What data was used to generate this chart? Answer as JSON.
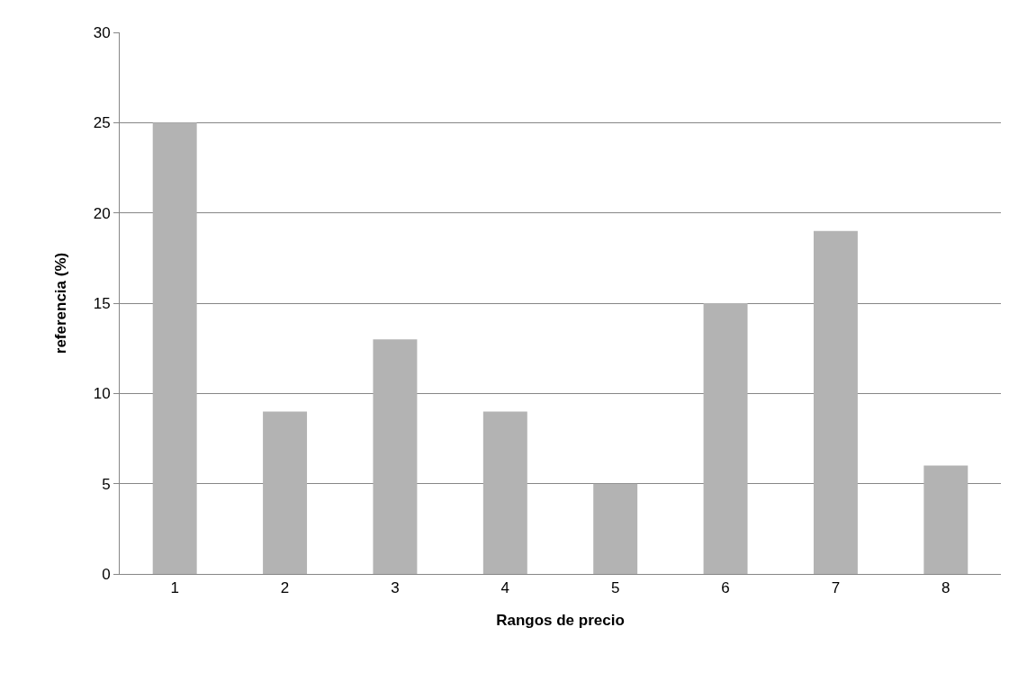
{
  "chart_data": {
    "type": "bar",
    "xlabel": "Rangos de precio",
    "ylabel": "referencia (%)",
    "categories": [
      "1",
      "2",
      "3",
      "4",
      "5",
      "6",
      "7",
      "8"
    ],
    "values": [
      25,
      9,
      13,
      9,
      5,
      15,
      19,
      6
    ],
    "color": "#b3b3b3",
    "ylim": [
      0,
      30
    ],
    "yticks": [
      0,
      5,
      10,
      15,
      20,
      25,
      30
    ],
    "grid": "y"
  }
}
